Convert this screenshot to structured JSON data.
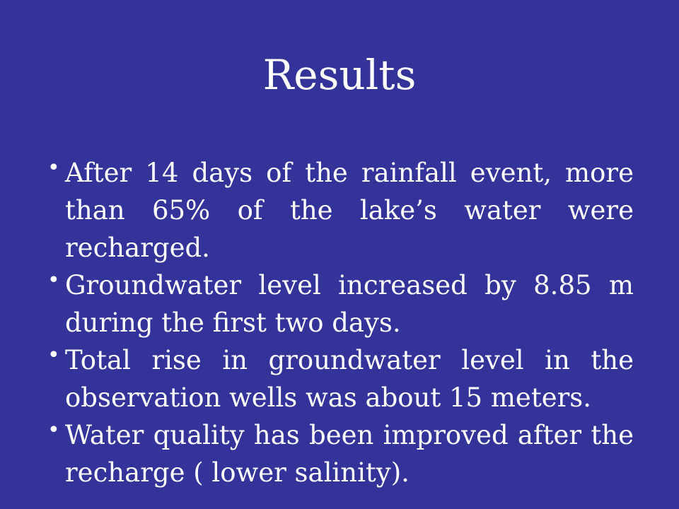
{
  "slide": {
    "title": "Results",
    "bullet_symbol": "•",
    "bullets": [
      "After 14 days of the rainfall event, more than 65% of the lake’s water were recharged.",
      "Groundwater level increased by 8.85 m during the first two days.",
      "Total rise in groundwater level in the observation wells was about 15 meters.",
      "Water quality has been improved after the recharge ( lower salinity)."
    ]
  },
  "colors": {
    "background": "#333399",
    "text": "#ffffff"
  }
}
